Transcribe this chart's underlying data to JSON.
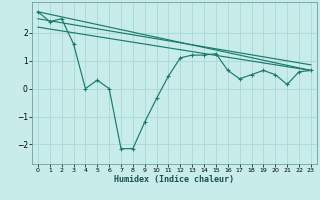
{
  "title": "",
  "xlabel": "Humidex (Indice chaleur)",
  "ylabel": "",
  "bg_color": "#c8ecea",
  "grid_color": "#aad8d4",
  "line_color": "#1a7a6e",
  "xlim": [
    -0.5,
    23.5
  ],
  "ylim": [
    -2.7,
    3.1
  ],
  "xticks": [
    0,
    1,
    2,
    3,
    4,
    5,
    6,
    7,
    8,
    9,
    10,
    11,
    12,
    13,
    14,
    15,
    16,
    17,
    18,
    19,
    20,
    21,
    22,
    23
  ],
  "yticks": [
    -2,
    -1,
    0,
    1,
    2
  ],
  "line1_x": [
    0,
    1,
    2,
    3,
    4,
    5,
    6,
    7,
    8,
    9,
    10,
    11,
    12,
    13,
    14,
    15,
    16,
    17,
    18,
    19,
    20,
    21,
    22,
    23
  ],
  "line1_y": [
    2.75,
    2.4,
    2.5,
    1.6,
    0.0,
    0.3,
    0.0,
    -2.15,
    -2.15,
    -1.2,
    -0.35,
    0.45,
    1.1,
    1.2,
    1.2,
    1.25,
    0.65,
    0.35,
    0.5,
    0.65,
    0.5,
    0.15,
    0.6,
    0.65
  ],
  "line2_x": [
    0,
    23
  ],
  "line2_y": [
    2.75,
    0.65
  ],
  "line3_x": [
    0,
    23
  ],
  "line3_y": [
    2.5,
    0.85
  ],
  "line4_x": [
    0,
    23
  ],
  "line4_y": [
    2.2,
    0.65
  ]
}
